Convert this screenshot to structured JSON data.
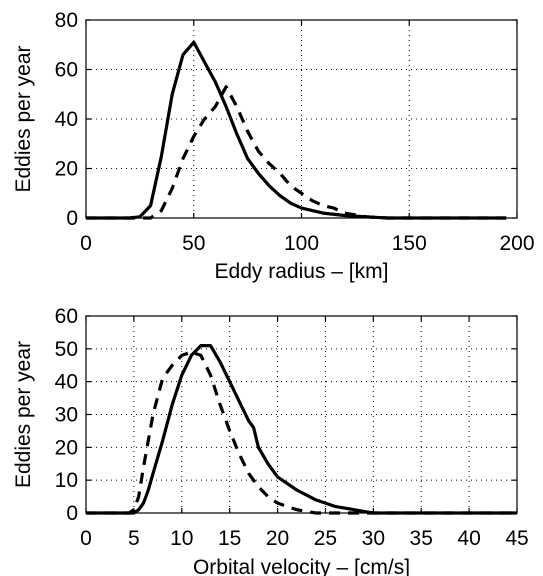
{
  "chart_data": [
    {
      "type": "line",
      "xlabel": "Eddy radius – [km]",
      "ylabel": "Eddies per year",
      "xlim": [
        0,
        200
      ],
      "ylim": [
        0,
        80
      ],
      "xticks": [
        0,
        50,
        100,
        150,
        200
      ],
      "yticks": [
        0,
        20,
        40,
        60,
        80
      ],
      "grid": true,
      "series": [
        {
          "style": "solid",
          "x": [
            0,
            20,
            25,
            30,
            35,
            40,
            45,
            50,
            55,
            60,
            65,
            70,
            75,
            80,
            85,
            90,
            95,
            100,
            110,
            120,
            130,
            140,
            150,
            170,
            195
          ],
          "y": [
            0,
            0,
            0.5,
            5,
            25,
            50,
            66,
            71,
            63,
            55,
            45,
            34,
            24,
            18,
            13,
            9,
            6,
            4,
            2,
            1,
            0.5,
            0,
            0,
            0,
            0
          ]
        },
        {
          "style": "dashed",
          "x": [
            0,
            20,
            30,
            35,
            40,
            45,
            50,
            55,
            60,
            65,
            70,
            75,
            80,
            85,
            90,
            95,
            100,
            105,
            110,
            115,
            120,
            130,
            140,
            150,
            170,
            195
          ],
          "y": [
            0,
            0,
            0,
            3,
            12,
            24,
            33,
            40,
            45,
            53,
            45,
            35,
            27,
            22,
            18,
            13,
            10,
            7,
            5,
            4,
            2,
            0.5,
            0,
            0,
            0,
            0
          ]
        }
      ]
    },
    {
      "type": "line",
      "xlabel": "Orbital velocity – [cm/s]",
      "ylabel": "Eddies per year",
      "xlim": [
        0,
        45
      ],
      "ylim": [
        0,
        60
      ],
      "xticks": [
        0,
        5,
        10,
        15,
        20,
        25,
        30,
        35,
        40,
        45
      ],
      "yticks": [
        0,
        10,
        20,
        30,
        40,
        50,
        60
      ],
      "grid": true,
      "series": [
        {
          "style": "solid",
          "x": [
            0,
            5,
            5.5,
            6,
            6.5,
            7,
            8,
            9,
            10,
            11,
            12,
            13,
            14,
            15,
            16,
            17,
            17.5,
            18,
            19,
            20,
            21,
            22,
            23,
            24,
            25,
            26,
            27,
            28,
            29,
            30,
            32,
            35,
            40,
            45
          ],
          "y": [
            0,
            0,
            1,
            3,
            7,
            12,
            22,
            33,
            42,
            48,
            51,
            51,
            46,
            40,
            34,
            28,
            26,
            20,
            15,
            11,
            9,
            7,
            5.5,
            4,
            3,
            2,
            1.5,
            1,
            0.5,
            0,
            0,
            0,
            0,
            0
          ],
          "dense": true
        },
        {
          "style": "dashed",
          "x": [
            0,
            4.5,
            5,
            5.5,
            6,
            7,
            8,
            9,
            10,
            11,
            12,
            13,
            14,
            15,
            16,
            17,
            18,
            19,
            20,
            21,
            22,
            23,
            24,
            26,
            30,
            45
          ],
          "y": [
            0,
            0,
            1,
            5,
            14,
            30,
            41,
            45,
            48,
            49,
            48,
            42,
            33,
            25,
            18,
            12,
            8,
            5,
            3,
            2,
            1,
            0.5,
            0,
            0,
            0,
            0
          ]
        }
      ]
    }
  ]
}
